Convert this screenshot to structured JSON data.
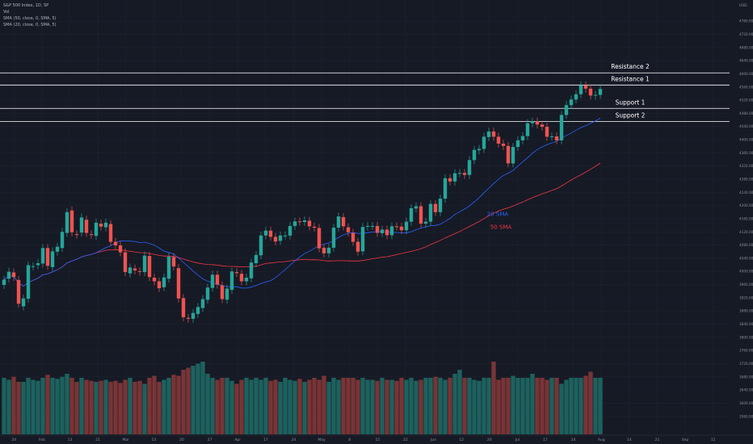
{
  "legend": {
    "title": "S&P 500 Index, 1D, SP",
    "vol": "Vol",
    "sma50": "SMA (50, close, 0, SMA, 5)",
    "sma20": "SMA (20, close, 0, SMA, 5)"
  },
  "currency": "USD",
  "chart_data": {
    "type": "candlestick",
    "ylim": [
      3530,
      4780
    ],
    "y_ticks": [
      3560,
      3600,
      3640,
      3680,
      3720,
      3760,
      3800,
      3840,
      3880,
      3920,
      3960,
      4000,
      4040,
      4080,
      4120,
      4160,
      4200,
      4240,
      4280,
      4320,
      4360,
      4400,
      4440,
      4480,
      4520,
      4560,
      4600,
      4640,
      4680,
      4720,
      4760
    ],
    "x_ticks": [
      "24",
      "Feb",
      "13",
      "21",
      "Mar",
      "13",
      "20",
      "27",
      "Apr",
      "17",
      "24",
      "May",
      "8",
      "15",
      "22",
      "Jun",
      "12",
      "20",
      "Jul",
      "17",
      "24",
      "Aug",
      "14",
      "21",
      "Sep",
      "11"
    ],
    "levels": [
      {
        "label": "Resistance 2",
        "value": 4603,
        "color": "#ffffff"
      },
      {
        "label": "Resistance 1",
        "value": 4566,
        "color": "#ffffff"
      },
      {
        "label": "Support 1",
        "value": 4495,
        "color": "#ffffff"
      },
      {
        "label": "Support 2",
        "value": 4455,
        "color": "#ffffff"
      }
    ],
    "series_labels": [
      {
        "text": "20 SMA",
        "color": "#2962ff"
      },
      {
        "text": "50 SMA",
        "color": "#f23645"
      }
    ],
    "colors": {
      "up": "#26a69a",
      "down": "#ef5350",
      "sma20": "#2962ff",
      "sma50": "#f23645",
      "price_tag": "#26a69a"
    },
    "close": [
      3975,
      3999,
      3983,
      3902,
      3918,
      4019,
      4016,
      4025,
      4071,
      4017,
      4061,
      4075,
      4120,
      4180,
      4119,
      4112,
      4164,
      4117,
      4111,
      4148,
      4136,
      4148,
      4090,
      4079,
      4058,
      3998,
      4012,
      4003,
      3999,
      4048,
      3983,
      3970,
      3949,
      3982,
      4045,
      4015,
      3918,
      3861,
      3856,
      3874,
      3892,
      3916,
      3951,
      3990,
      3960,
      3916,
      3948,
      4000,
      3995,
      3970,
      3981,
      4027,
      4050,
      4109,
      4124,
      4105,
      4091,
      4109,
      4109,
      4138,
      4152,
      4151,
      4155,
      4137,
      4133,
      4070,
      4055,
      4072,
      4133,
      4167,
      4137,
      4119,
      4090,
      4060,
      4135,
      4138,
      4138,
      4117,
      4127,
      4110,
      4137,
      4136,
      4125,
      4151,
      4192,
      4198,
      4145,
      4151,
      4205,
      4180,
      4221,
      4283,
      4273,
      4298,
      4299,
      4293,
      4338,
      4369,
      4372,
      4409,
      4425,
      4409,
      4388,
      4381,
      4328,
      4378,
      4398,
      4411,
      4450,
      4455,
      4446,
      4439,
      4409,
      4410,
      4398,
      4475,
      4505,
      4522,
      4538,
      4565,
      4555,
      4534,
      4536,
      4554
    ],
    "open": [
      3959,
      3978,
      3997,
      3974,
      3894,
      3917,
      4015,
      4019,
      4024,
      4071,
      4013,
      4060,
      4071,
      4117,
      4185,
      4113,
      4118,
      4157,
      4113,
      4108,
      4145,
      4134,
      4144,
      4090,
      4079,
      4058,
      3994,
      4009,
      4001,
      3998,
      4047,
      3981,
      3970,
      3952,
      3978,
      4044,
      4010,
      3919,
      3859,
      3856,
      3871,
      3889,
      3914,
      3950,
      3990,
      3958,
      3914,
      3944,
      3998,
      3993,
      3970,
      3979,
      4025,
      4049,
      4109,
      4124,
      4105,
      4093,
      4109,
      4109,
      4138,
      4152,
      4150,
      4154,
      4136,
      4132,
      4072,
      4055,
      4072,
      4133,
      4165,
      4134,
      4117,
      4090,
      4061,
      4136,
      4138,
      4138,
      4116,
      4127,
      4110,
      4137,
      4136,
      4125,
      4151,
      4191,
      4198,
      4145,
      4151,
      4205,
      4180,
      4221,
      4283,
      4273,
      4298,
      4299,
      4293,
      4338,
      4368,
      4372,
      4408,
      4425,
      4409,
      4388,
      4381,
      4328,
      4378,
      4398,
      4411,
      4450,
      4455,
      4446,
      4439,
      4409,
      4410,
      4398,
      4475,
      4505,
      4522,
      4538,
      4565,
      4555,
      4534,
      4536
    ],
    "volume": [
      560,
      540,
      570,
      520,
      520,
      560,
      540,
      530,
      560,
      590,
      560,
      550,
      570,
      600,
      560,
      520,
      560,
      540,
      530,
      520,
      530,
      540,
      520,
      530,
      510,
      540,
      560,
      520,
      530,
      500,
      560,
      580,
      520,
      540,
      560,
      590,
      580,
      640,
      660,
      680,
      700,
      720,
      600,
      560,
      540,
      560,
      560,
      530,
      500,
      540,
      560,
      540,
      560,
      540,
      560,
      530,
      540,
      520,
      560,
      540,
      530,
      550,
      520,
      540,
      560,
      540,
      580,
      520,
      560,
      540,
      560,
      560,
      560,
      540,
      560,
      540,
      540,
      530,
      560,
      540,
      540,
      530,
      560,
      540,
      560,
      530,
      540,
      560,
      560,
      570,
      560,
      540,
      560,
      600,
      640,
      560,
      560,
      540,
      530,
      560,
      560,
      720,
      540,
      560,
      560,
      580,
      560,
      560,
      560,
      600,
      560,
      560,
      540,
      560,
      560,
      500,
      540,
      560,
      560,
      560,
      580,
      620,
      560,
      560
    ],
    "volume_ylim": [
      0,
      1600
    ]
  }
}
